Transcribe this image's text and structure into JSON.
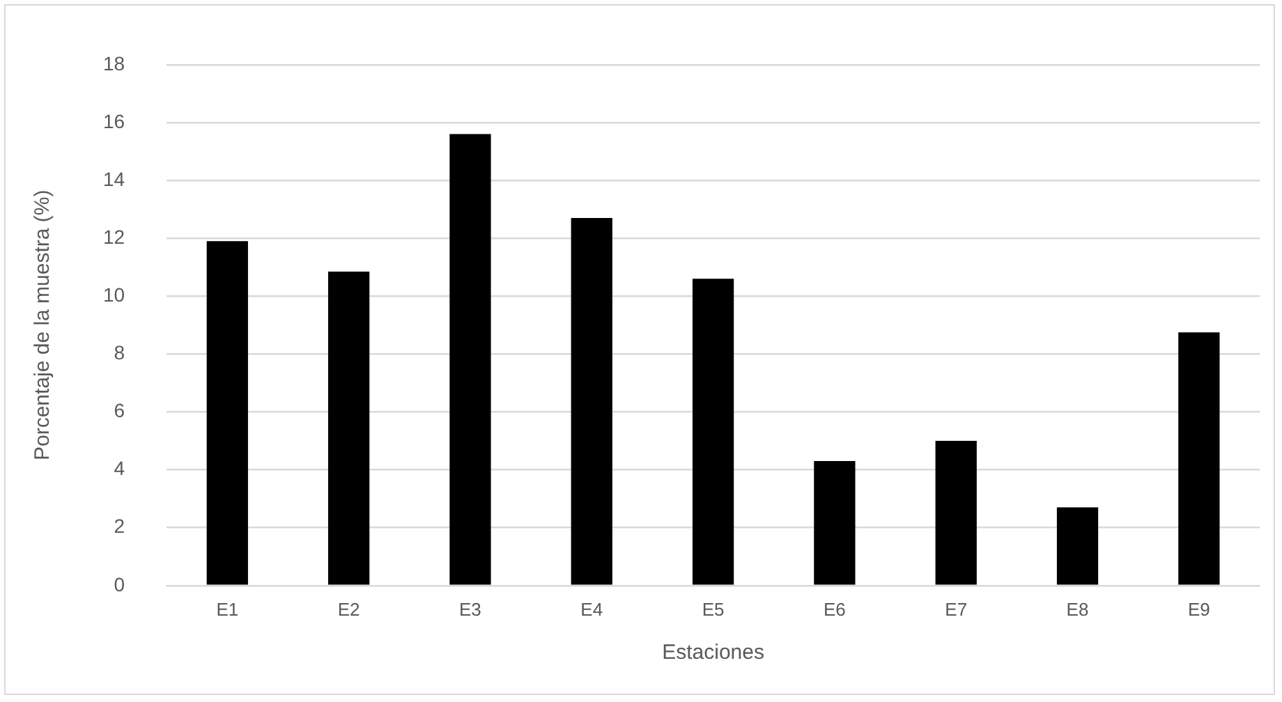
{
  "chart_data": {
    "type": "bar",
    "xlabel": "Estaciones",
    "ylabel": "Porcentaje de la muestra (%)",
    "categories": [
      "E1",
      "E2",
      "E3",
      "E4",
      "E5",
      "E6",
      "E7",
      "E8",
      "E9"
    ],
    "values": [
      11.9,
      10.85,
      15.6,
      12.7,
      10.6,
      4.3,
      5.0,
      2.7,
      8.75
    ],
    "color": "#000000",
    "ylim": [
      0,
      18
    ],
    "yticks": [
      0,
      2,
      4,
      6,
      8,
      10,
      12,
      14,
      16,
      18
    ],
    "grid": "y",
    "legend": false
  }
}
